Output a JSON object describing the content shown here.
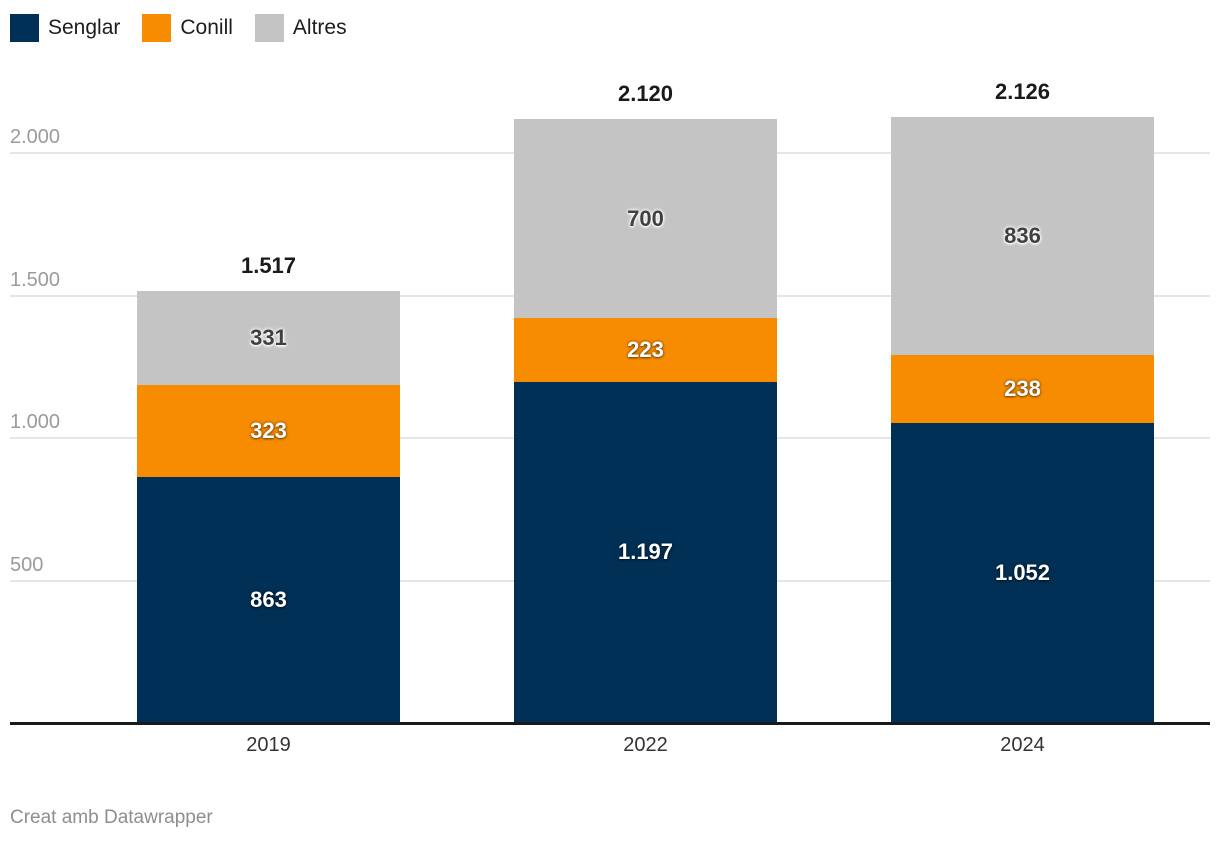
{
  "chart_data": {
    "type": "bar",
    "stacked": true,
    "grid": true,
    "legend_position": "top-left",
    "categories": [
      "2019",
      "2022",
      "2024"
    ],
    "series": [
      {
        "name": "Senglar",
        "color": "#003055",
        "label_style": "light",
        "values": [
          863,
          1197,
          1052
        ],
        "labels": [
          "863",
          "1.197",
          "1.052"
        ]
      },
      {
        "name": "Conill",
        "color": "#f88c00",
        "label_style": "light",
        "values": [
          323,
          223,
          238
        ],
        "labels": [
          "323",
          "223",
          "238"
        ]
      },
      {
        "name": "Altres",
        "color": "#c4c4c4",
        "label_style": "dark",
        "values": [
          331,
          700,
          836
        ],
        "labels": [
          "331",
          "700",
          "836"
        ]
      }
    ],
    "totals": {
      "values": [
        1517,
        2120,
        2126
      ],
      "labels": [
        "1.517",
        "2.120",
        "2.126"
      ]
    },
    "y_axis": {
      "ticks": [
        500,
        1000,
        1500,
        2000
      ],
      "tick_labels": [
        "500",
        "1.000",
        "1.500",
        "2.000"
      ],
      "range": [
        0,
        2126
      ]
    },
    "legend": [
      "Senglar",
      "Conill",
      "Altres"
    ]
  },
  "footer": {
    "credit": "Creat amb Datawrapper"
  }
}
